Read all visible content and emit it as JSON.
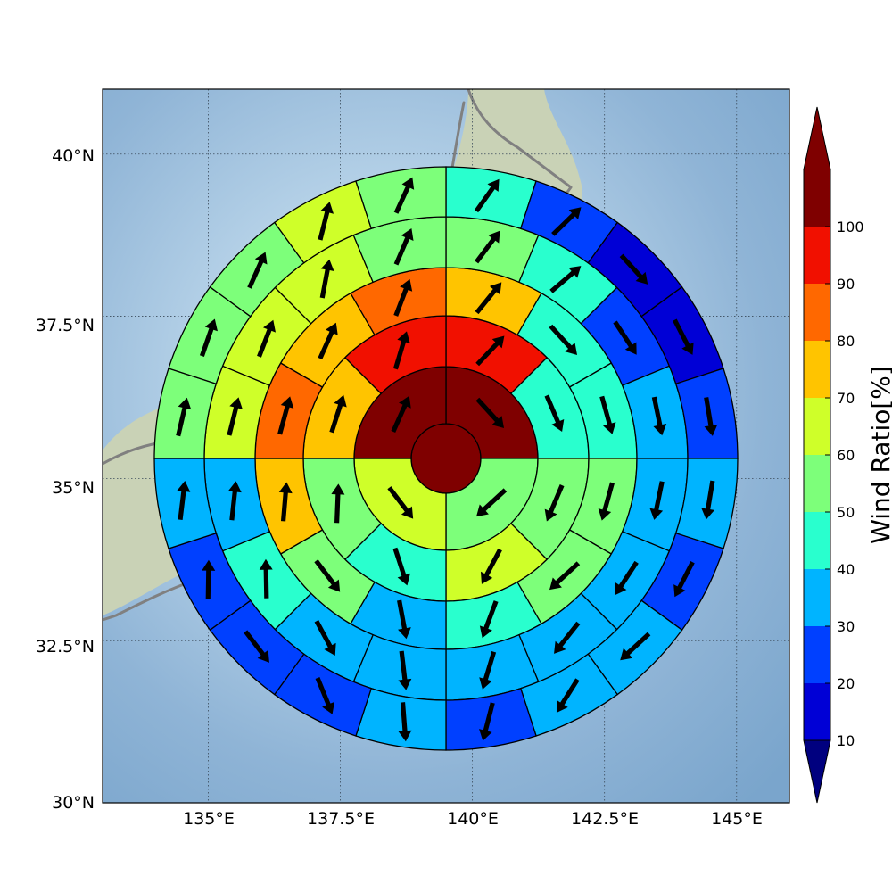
{
  "chart_data": {
    "type": "polar-sector-map",
    "title": "",
    "axes": {
      "lon_range": [
        133,
        146
      ],
      "lat_range": [
        30,
        41
      ],
      "x_ticks": [
        "135°E",
        "137.5°E",
        "140°E",
        "142.5°E",
        "145°E"
      ],
      "y_ticks": [
        "30°N",
        "32.5°N",
        "35°N",
        "37.5°N",
        "40°N"
      ],
      "grid": true
    },
    "center": {
      "lon": 139.5,
      "lat": 35.5
    },
    "rings": [
      {
        "ring": 1,
        "sectors": 1,
        "values": [
          100
        ]
      },
      {
        "ring": 2,
        "sectors": 4,
        "values": [
          100,
          55,
          65,
          100
        ]
      },
      {
        "ring": 3,
        "sectors": 8,
        "values": [
          95,
          45,
          55,
          65,
          45,
          55,
          75,
          95
        ]
      },
      {
        "ring": 4,
        "sectors": 12,
        "values": [
          75,
          45,
          45,
          55,
          55,
          45,
          35,
          55,
          75,
          85,
          75,
          85
        ]
      },
      {
        "ring": 5,
        "sectors": 16,
        "values": [
          55,
          45,
          25,
          35,
          35,
          35,
          35,
          35,
          35,
          35,
          45,
          35,
          65,
          65,
          65,
          55
        ]
      },
      {
        "ring": 6,
        "sectors": 20,
        "values": [
          45,
          25,
          15,
          15,
          25,
          35,
          25,
          35,
          35,
          25,
          35,
          25,
          25,
          25,
          35,
          55,
          55,
          55,
          65,
          55
        ]
      }
    ],
    "colorbar": {
      "label": "Wind Ratio[%]",
      "ticks": [
        "10",
        "20",
        "30",
        "40",
        "50",
        "60",
        "70",
        "80",
        "90",
        "100"
      ],
      "bounds": [
        10,
        20,
        30,
        40,
        50,
        60,
        70,
        80,
        90,
        100
      ],
      "colors": [
        "#0000d6",
        "#0040ff",
        "#00b4ff",
        "#29ffce",
        "#7dff7a",
        "#cfff29",
        "#ffc400",
        "#ff6800",
        "#f11000",
        "#7f0000"
      ],
      "under_color": "#00007f",
      "over_color": "#7f0000",
      "extend": "both"
    }
  }
}
